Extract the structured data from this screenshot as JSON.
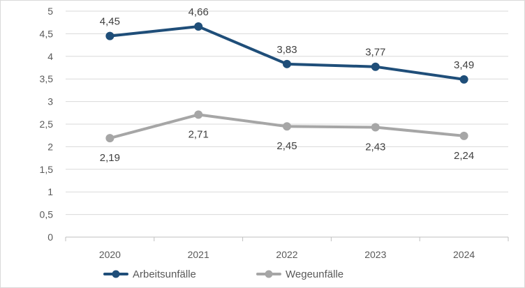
{
  "chart_data": {
    "type": "line",
    "categories": [
      "2020",
      "2021",
      "2022",
      "2023",
      "2024"
    ],
    "series": [
      {
        "name": "Arbeitsunfälle",
        "color": "#1f4e79",
        "values": [
          4.45,
          4.66,
          3.83,
          3.77,
          3.49
        ],
        "labels": [
          "4,45",
          "4,66",
          "3,83",
          "3,77",
          "3,49"
        ]
      },
      {
        "name": "Wegeunfälle",
        "color": "#a6a6a6",
        "values": [
          2.19,
          2.71,
          2.45,
          2.43,
          2.24
        ],
        "labels": [
          "2,19",
          "2,71",
          "2,45",
          "2,43",
          "2,24"
        ]
      }
    ],
    "ylim": [
      0,
      5
    ],
    "yticks": [
      0,
      0.5,
      1,
      1.5,
      2,
      2.5,
      3,
      3.5,
      4,
      4.5,
      5
    ],
    "ytick_labels": [
      "0",
      "0,5",
      "1",
      "1,5",
      "2",
      "2,5",
      "3",
      "3,5",
      "4",
      "4,5",
      "5"
    ],
    "grid": true,
    "legend": "bottom"
  }
}
